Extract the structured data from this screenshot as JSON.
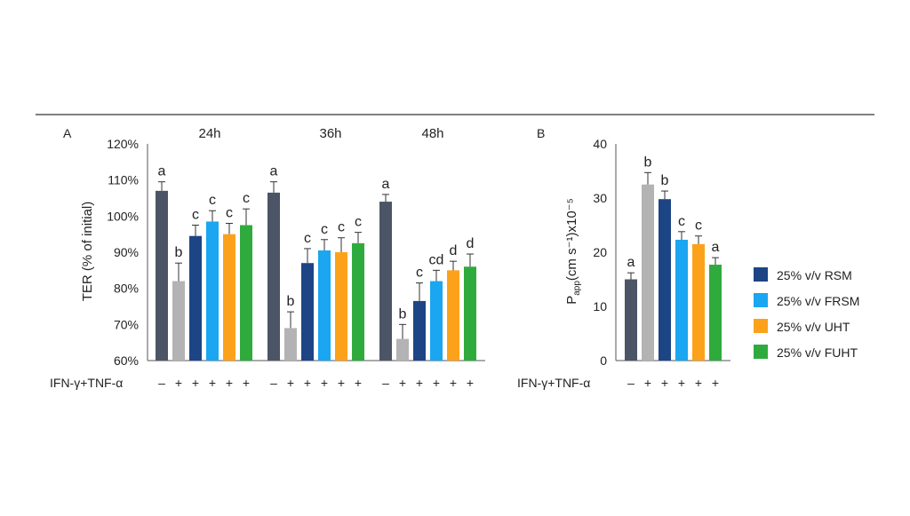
{
  "colors": {
    "control": "#4c5566",
    "ifn_tnf": "#b3b3b3",
    "RSM": "#1d4485",
    "FRSM": "#1aa6f0",
    "UHT": "#fca21a",
    "FUHT": "#2fab3e",
    "axis": "#555555",
    "rule": "#333333"
  },
  "legend": {
    "items": [
      {
        "label": "25% v/v RSM",
        "color_key": "RSM"
      },
      {
        "label": "25% v/v FRSM",
        "color_key": "FRSM"
      },
      {
        "label": "25% v/v UHT",
        "color_key": "UHT"
      },
      {
        "label": "25% v/v FUHT",
        "color_key": "FUHT"
      }
    ]
  },
  "chart_data": [
    {
      "panel": "A",
      "type": "bar",
      "ylabel": "TER (% of initial)",
      "ylim": [
        60,
        120
      ],
      "yticks": [
        "60%",
        "70%",
        "80%",
        "90%",
        "100%",
        "110%",
        "120%"
      ],
      "treatment_label": "IFN-γ+TNF-α",
      "series_keys": [
        "control",
        "ifn_tnf",
        "RSM",
        "FRSM",
        "UHT",
        "FUHT"
      ],
      "treatment": [
        "–",
        "+",
        "+",
        "+",
        "+",
        "+"
      ],
      "groups": [
        {
          "label": "24h",
          "values": [
            107,
            82,
            94.5,
            98.5,
            95,
            97.5
          ],
          "errors": [
            2.5,
            5,
            3,
            3,
            3,
            4.5
          ],
          "letters": [
            "a",
            "b",
            "c",
            "c",
            "c",
            "c"
          ]
        },
        {
          "label": "36h",
          "values": [
            106.5,
            69,
            87,
            90.5,
            90,
            92.5
          ],
          "errors": [
            3,
            4.5,
            4,
            3,
            4,
            3
          ],
          "letters": [
            "a",
            "b",
            "c",
            "c",
            "c",
            "c"
          ]
        },
        {
          "label": "48h",
          "values": [
            104,
            66,
            76.5,
            82,
            85,
            86
          ],
          "errors": [
            2,
            4,
            5,
            3,
            2.5,
            3.5
          ],
          "letters": [
            "a",
            "b",
            "c",
            "cd",
            "d",
            "d"
          ]
        }
      ]
    },
    {
      "panel": "B",
      "type": "bar",
      "ylabel_main": "P",
      "ylabel_sub": "app",
      "ylabel_rest": "(cm s⁻¹)x10⁻⁵",
      "ylim": [
        0,
        40
      ],
      "yticks": [
        "0",
        "10",
        "20",
        "30",
        "40"
      ],
      "treatment_label": "IFN-γ+TNF-α",
      "series_keys": [
        "control",
        "ifn_tnf",
        "RSM",
        "FRSM",
        "UHT",
        "FUHT"
      ],
      "treatment": [
        "–",
        "+",
        "+",
        "+",
        "+",
        "+"
      ],
      "values": [
        15,
        32.5,
        29.8,
        22.3,
        21.5,
        17.7
      ],
      "errors": [
        1.2,
        2.2,
        1.5,
        1.5,
        1.5,
        1.3
      ],
      "letters": [
        "a",
        "b",
        "b",
        "c",
        "c",
        "a"
      ]
    }
  ]
}
